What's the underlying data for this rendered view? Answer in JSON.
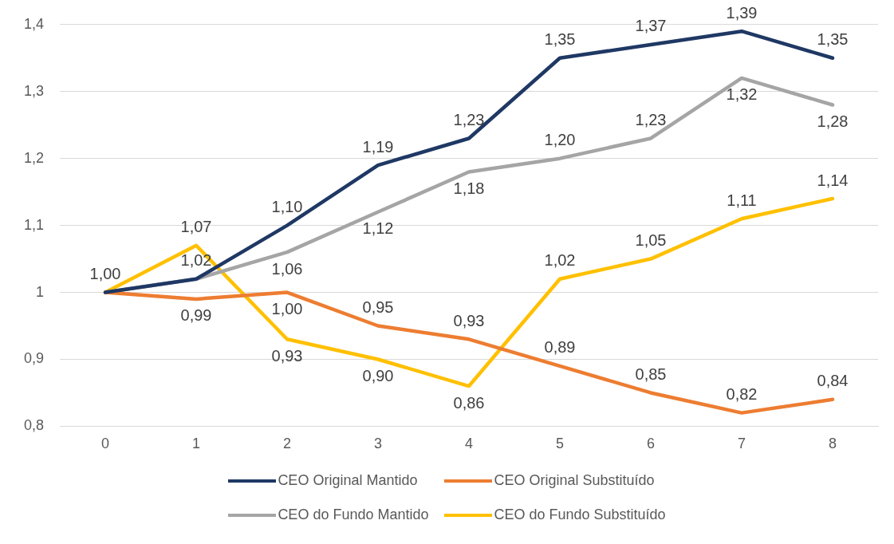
{
  "chart_data": {
    "type": "line",
    "categories": [
      "0",
      "1",
      "2",
      "3",
      "4",
      "5",
      "6",
      "7",
      "8"
    ],
    "ylim": [
      0.8,
      1.4
    ],
    "yticks": [
      {
        "value": 0.8,
        "label": "0,8"
      },
      {
        "value": 0.9,
        "label": "0,9"
      },
      {
        "value": 1,
        "label": "1"
      },
      {
        "value": 1.1,
        "label": "1,1"
      },
      {
        "value": 1.2,
        "label": "1,2"
      },
      {
        "value": 1.3,
        "label": "1,3"
      },
      {
        "value": 1.4,
        "label": "1,4"
      }
    ],
    "grid": "y",
    "legend": "bottom",
    "marker": "none",
    "line_style": "solid",
    "series": [
      {
        "name": "CEO Original Mantido",
        "color": "#1f3864",
        "values": [
          1.0,
          1.02,
          1.1,
          1.19,
          1.23,
          1.35,
          1.37,
          1.39,
          1.35
        ],
        "value_labels": [
          "1,00",
          "1,02",
          "1,10",
          "1,19",
          "1,23",
          "1,35",
          "1,37",
          "1,39",
          "1,35"
        ]
      },
      {
        "name": "CEO Original Substituído",
        "color": "#ed7d31",
        "values": [
          1.0,
          0.99,
          1.0,
          0.95,
          0.93,
          0.89,
          0.85,
          0.82,
          0.84
        ],
        "value_labels": [
          null,
          "0,99",
          "1,00",
          "0,95",
          "0,93",
          "0,89",
          "0,85",
          "0,82",
          "0,84"
        ]
      },
      {
        "name": "CEO do Fundo Mantido",
        "color": "#a5a5a5",
        "values": [
          1.0,
          1.02,
          1.06,
          1.12,
          1.18,
          1.2,
          1.23,
          1.32,
          1.28
        ],
        "value_labels": [
          null,
          null,
          "1,06",
          "1,12",
          "1,18",
          "1,20",
          "1,23",
          "1,32",
          "1,28"
        ]
      },
      {
        "name": "CEO do Fundo Substituído",
        "color": "#ffc000",
        "values": [
          1.0,
          1.07,
          0.93,
          0.9,
          0.86,
          1.02,
          1.05,
          1.11,
          1.14
        ],
        "value_labels": [
          null,
          "1,07",
          "0,93",
          "0,90",
          "0,86",
          "1,02",
          "1,05",
          "1,11",
          "1,14"
        ]
      }
    ]
  }
}
